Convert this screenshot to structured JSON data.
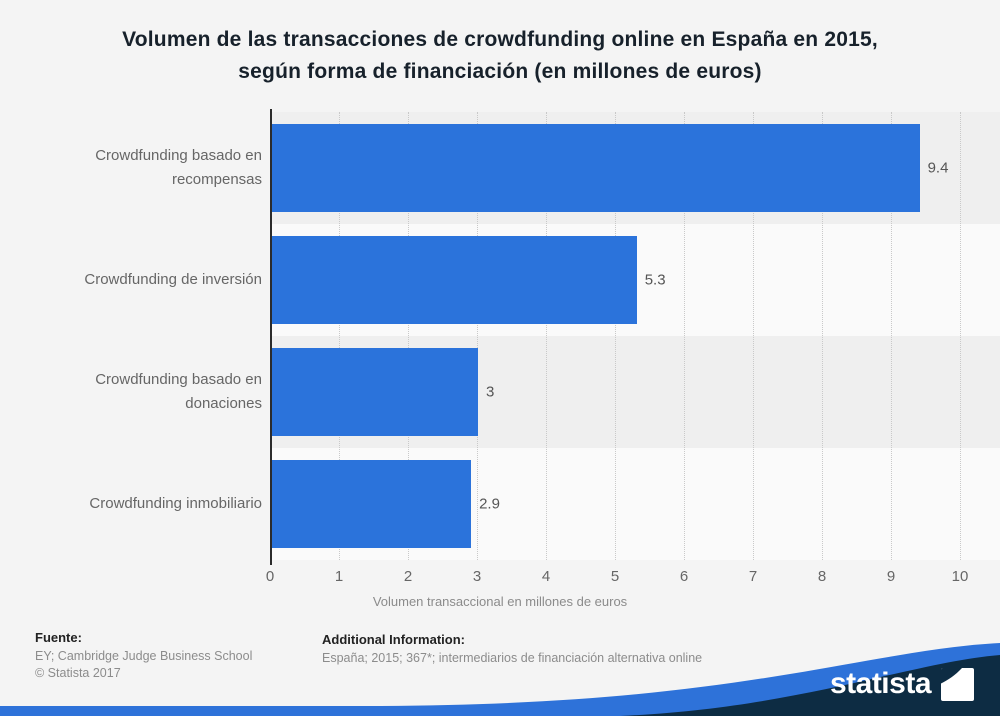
{
  "title": "Volumen de las transacciones de crowdfunding online en España en 2015, según forma de financiación (en millones de euros)",
  "chart_data": {
    "type": "bar",
    "orientation": "horizontal",
    "categories": [
      "Crowdfunding basado en recompensas",
      "Crowdfunding de inversión",
      "Crowdfunding basado en donaciones",
      "Crowdfunding inmobiliario"
    ],
    "values": [
      9.4,
      5.3,
      3,
      2.9
    ],
    "value_labels": [
      "9.4",
      "5.3",
      "3",
      "2.9"
    ],
    "title": "Volumen de las transacciones de crowdfunding online en España en 2015, según forma de financiación (en millones de euros)",
    "xlabel": "Volumen transaccional en millones de euros",
    "ylabel": "",
    "xlim": [
      0,
      10
    ],
    "xticks": [
      0,
      1,
      2,
      3,
      4,
      5,
      6,
      7,
      8,
      9,
      10
    ],
    "grid": "vertical-dotted",
    "legend": "none",
    "bar_color": "#2b73db"
  },
  "footer": {
    "source_heading": "Fuente:",
    "source_line1": "EY; Cambridge Judge Business School",
    "source_line2": "© Statista 2017",
    "additional_heading": "Additional Information:",
    "additional_text": "España; 2015; 367*; intermediarios de financiación alternativa online"
  },
  "branding": {
    "logo_text": "statista",
    "navy": "#0d2c43",
    "wave_blue": "#2e72d9"
  }
}
